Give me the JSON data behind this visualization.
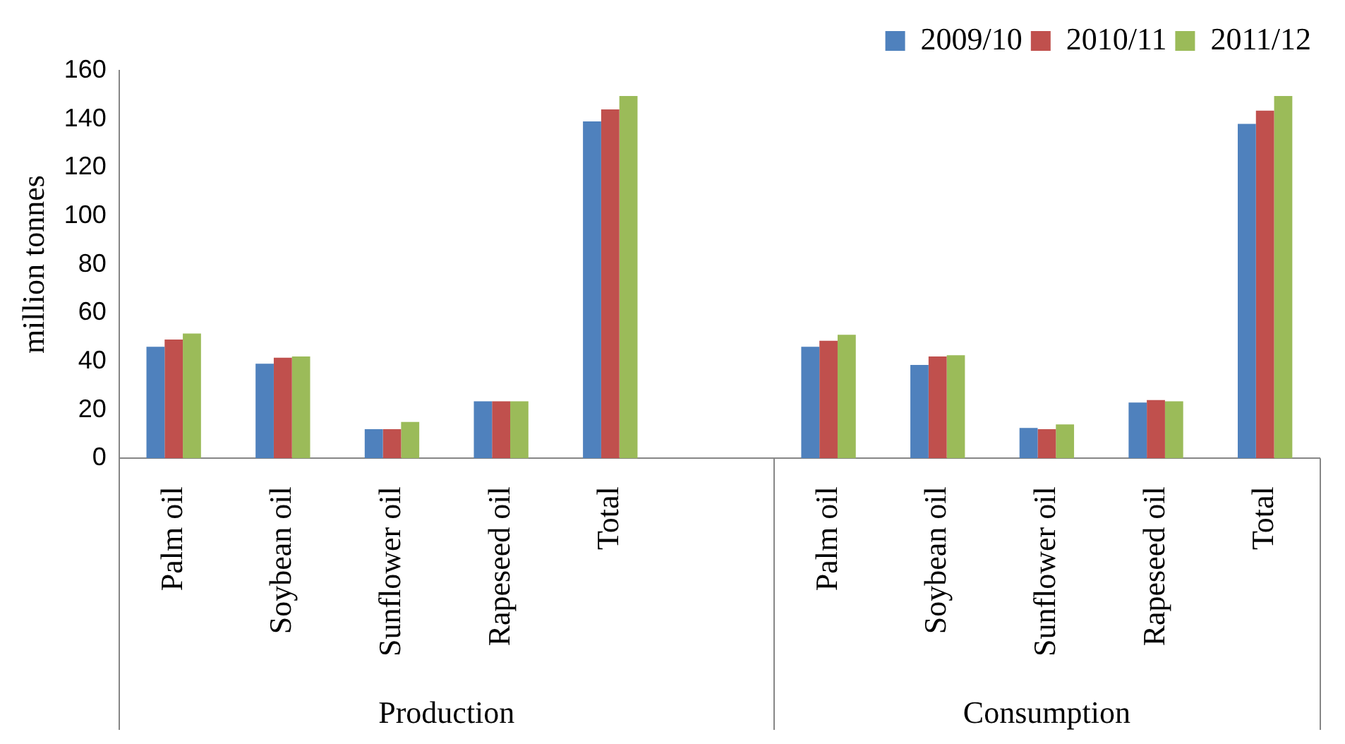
{
  "chart_data": {
    "type": "bar",
    "ylabel": "million tonnes",
    "categories": [
      "Palm oil",
      "Soybean oil",
      "Sunflower oil",
      "Rapeseed oil",
      "Total",
      null,
      "Palm oil",
      "Soybean oil",
      "Sunflower oil",
      "Rapeseed oil",
      "Total"
    ],
    "series": [
      {
        "name": "2009/10",
        "color": "#4f81bd",
        "values": [
          46,
          39,
          12,
          23.5,
          139,
          null,
          46,
          38.5,
          12.5,
          23,
          138
        ]
      },
      {
        "name": "2010/11",
        "color": "#c0504d",
        "values": [
          49,
          41.5,
          12,
          23.5,
          144,
          null,
          48.5,
          42,
          12,
          24,
          143.5
        ]
      },
      {
        "name": "2011/12",
        "color": "#9bbb59",
        "values": [
          51.5,
          42,
          15,
          23.5,
          149.5,
          null,
          51,
          42.5,
          14,
          23.5,
          149.5
        ]
      }
    ],
    "annotations": [
      "Production",
      "Consumption"
    ],
    "ylim": [
      0,
      160
    ],
    "yticks": [
      0,
      20,
      40,
      60,
      80,
      100,
      120,
      140,
      160
    ],
    "grid": false,
    "legend": "top right"
  }
}
